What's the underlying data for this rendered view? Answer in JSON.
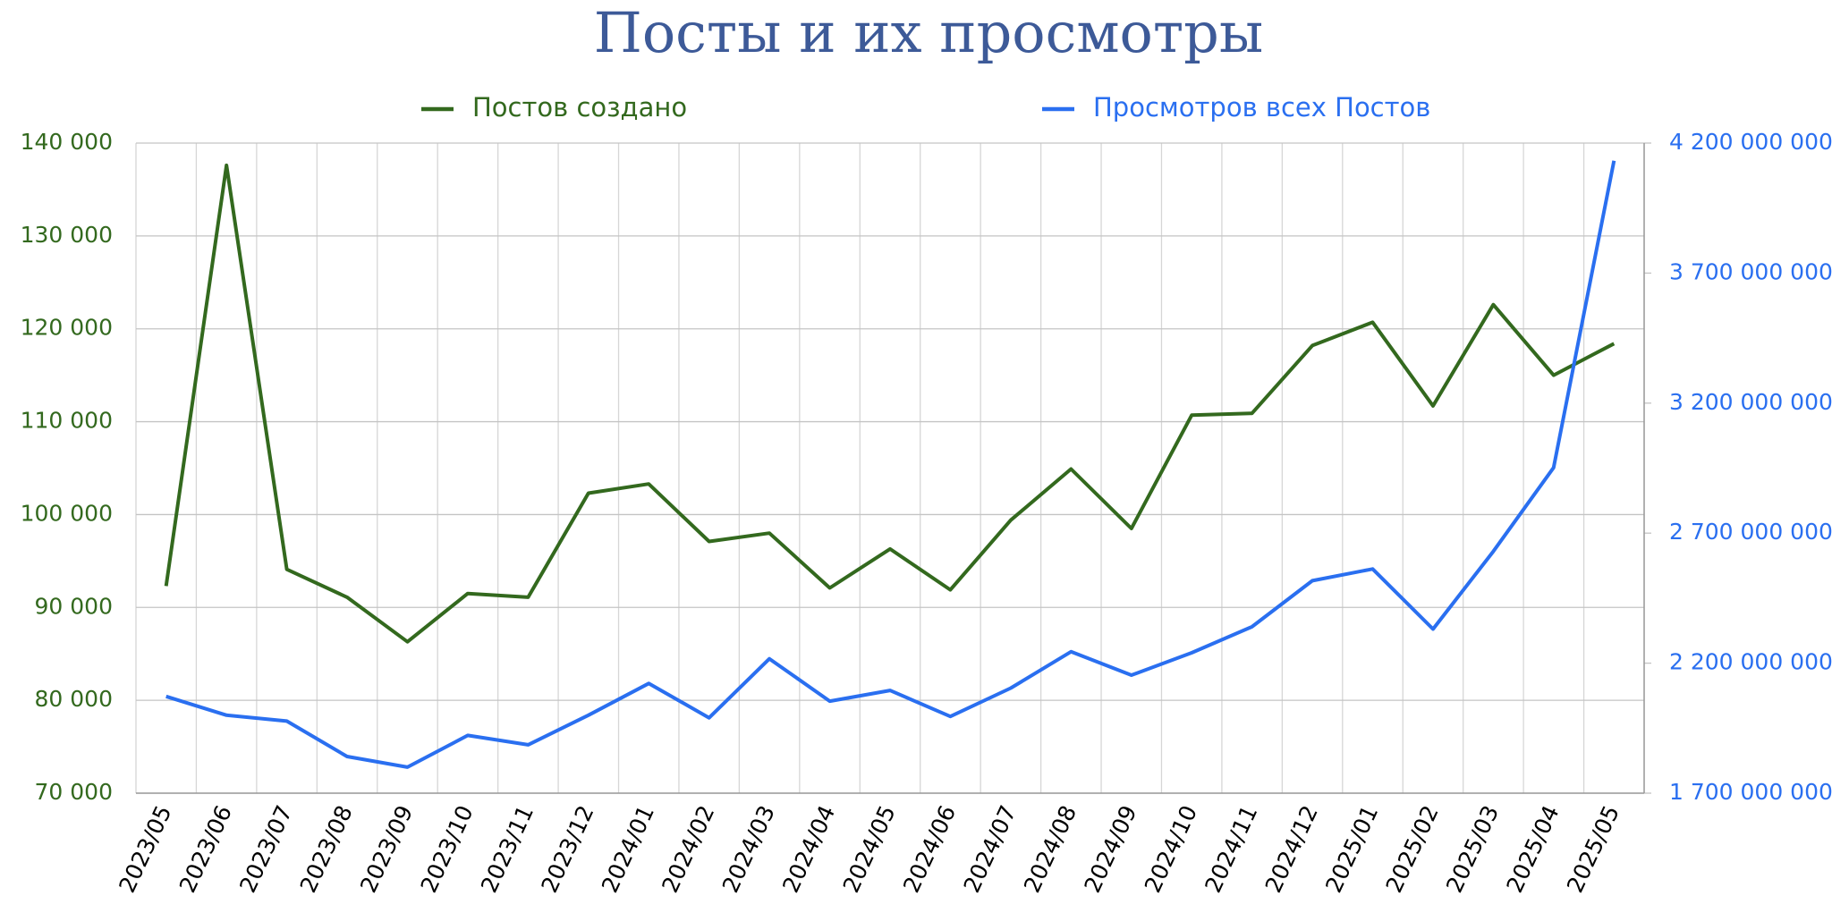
{
  "chart_data": {
    "type": "line",
    "title": "Посты и их просмотры",
    "categories": [
      "2023/05",
      "2023/06",
      "2023/07",
      "2023/08",
      "2023/09",
      "2023/10",
      "2023/11",
      "2023/12",
      "2024/01",
      "2024/02",
      "2024/03",
      "2024/04",
      "2024/05",
      "2024/06",
      "2024/07",
      "2024/08",
      "2024/09",
      "2024/10",
      "2024/11",
      "2024/12",
      "2025/01",
      "2025/02",
      "2025/03",
      "2025/04",
      "2025/05"
    ],
    "series": [
      {
        "name": "Постов создано",
        "color": "#33691e",
        "values": [
          92300,
          137600,
          94100,
          91100,
          86300,
          91500,
          91100,
          102300,
          103300,
          97100,
          98000,
          92100,
          96300,
          91900,
          99400,
          104900,
          98500,
          110700,
          110900,
          118200,
          120700,
          111700,
          122600,
          115000,
          118400
        ]
      },
      {
        "name": "Просмотров всех Постов",
        "color": "#2a6ff0",
        "axis": "y2",
        "values": [
          2072000000,
          2000000000,
          1977000000,
          1841000000,
          1800000000,
          1922000000,
          1886000000,
          2000000000,
          2122000000,
          1990000000,
          2217000000,
          2054000000,
          2095000000,
          1995000000,
          2104000000,
          2244000000,
          2154000000,
          2240000000,
          2340000000,
          2517000000,
          2562000000,
          2331000000,
          2630000000,
          2952000000,
          4132000000
        ]
      }
    ],
    "ylim": [
      70000,
      140000
    ],
    "yticks": [
      {
        "value": 70000,
        "label": "70 000"
      },
      {
        "value": 80000,
        "label": "80 000"
      },
      {
        "value": 90000,
        "label": "90 000"
      },
      {
        "value": 100000,
        "label": "100 000"
      },
      {
        "value": 110000,
        "label": "110 000"
      },
      {
        "value": 120000,
        "label": "120 000"
      },
      {
        "value": 130000,
        "label": "130 000"
      },
      {
        "value": 140000,
        "label": "140 000"
      }
    ],
    "y2lim": [
      1700000000,
      4200000000
    ],
    "y2ticks": [
      {
        "value": 1700000000,
        "label": "1 700 000 000"
      },
      {
        "value": 2200000000,
        "label": "2 200 000 000"
      },
      {
        "value": 2700000000,
        "label": "2 700 000 000"
      },
      {
        "value": 3200000000,
        "label": "3 200 000 000"
      },
      {
        "value": 3700000000,
        "label": "3 700 000 000"
      },
      {
        "value": 4200000000,
        "label": "4 200 000 000"
      }
    ],
    "grid": true,
    "legend": "top"
  }
}
